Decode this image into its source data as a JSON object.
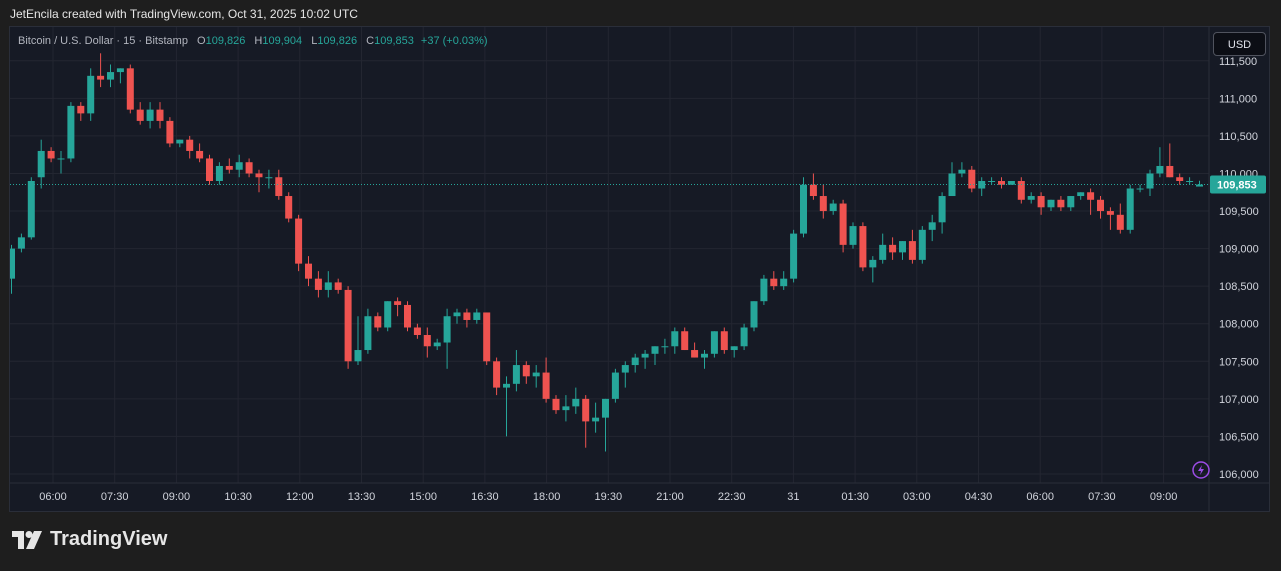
{
  "header": {
    "caption": "JetEncila created with TradingView.com, Oct 31, 2025 10:02 UTC"
  },
  "legend": {
    "symbol": "Bitcoin / U.S. Dollar · 15 · Bitstamp",
    "o_label": "O",
    "o_value": "109,826",
    "h_label": "H",
    "h_value": "109,904",
    "l_label": "L",
    "l_value": "109,826",
    "c_label": "C",
    "c_value": "109,853",
    "change": "+37 (+0.03%)"
  },
  "currency": "USD",
  "last_price_label": "109,853",
  "footer": {
    "brand": "TradingView"
  },
  "colors": {
    "up": "#26a69a",
    "down": "#ef5350",
    "background": "#161a25",
    "grid": "#232631",
    "axis_text": "#d1d4dc"
  },
  "chart_data": {
    "type": "candlestick",
    "title": "Bitcoin / U.S. Dollar · 15 · Bitstamp",
    "x_ticks": [
      "06:00",
      "07:30",
      "09:00",
      "10:30",
      "12:00",
      "13:30",
      "15:00",
      "16:30",
      "18:00",
      "19:30",
      "21:00",
      "22:30",
      "31",
      "01:30",
      "03:00",
      "04:30",
      "06:00",
      "07:30",
      "09:00"
    ],
    "y_ticks": [
      "106,000",
      "106,500",
      "107,000",
      "107,500",
      "108,000",
      "108,500",
      "109,000",
      "109,500",
      "110,000",
      "110,500",
      "111,000",
      "111,500"
    ],
    "y_tick_values": [
      106000,
      106500,
      107000,
      107500,
      108000,
      108500,
      109000,
      109500,
      110000,
      110500,
      111000,
      111500
    ],
    "ylim": [
      105880,
      111950
    ],
    "last_price": 109853,
    "ohlc": [
      [
        108600,
        109050,
        108400,
        109000
      ],
      [
        109000,
        109200,
        108950,
        109150
      ],
      [
        109150,
        109950,
        109120,
        109900
      ],
      [
        109950,
        110450,
        109800,
        110300
      ],
      [
        110300,
        110350,
        110150,
        110200
      ],
      [
        110200,
        110300,
        110000,
        110200
      ],
      [
        110200,
        110950,
        110150,
        110900
      ],
      [
        110900,
        110950,
        110700,
        110800
      ],
      [
        110800,
        111400,
        110700,
        111300
      ],
      [
        111300,
        111600,
        111150,
        111250
      ],
      [
        111250,
        111450,
        111150,
        111350
      ],
      [
        111350,
        111400,
        111200,
        111400
      ],
      [
        111400,
        111450,
        110800,
        110850
      ],
      [
        110850,
        110950,
        110650,
        110700
      ],
      [
        110700,
        110950,
        110600,
        110850
      ],
      [
        110850,
        110950,
        110600,
        110700
      ],
      [
        110700,
        110750,
        110350,
        110400
      ],
      [
        110400,
        110450,
        110350,
        110450
      ],
      [
        110450,
        110500,
        110200,
        110300
      ],
      [
        110300,
        110400,
        110150,
        110200
      ],
      [
        110200,
        110250,
        109850,
        109900
      ],
      [
        109900,
        110150,
        109850,
        110100
      ],
      [
        110100,
        110200,
        110000,
        110050
      ],
      [
        110050,
        110250,
        109950,
        110150
      ],
      [
        110150,
        110200,
        109950,
        110000
      ],
      [
        110000,
        110050,
        109750,
        109950
      ],
      [
        109950,
        110050,
        109800,
        109950
      ],
      [
        109950,
        110050,
        109650,
        109700
      ],
      [
        109700,
        109750,
        109350,
        109400
      ],
      [
        109400,
        109450,
        108700,
        108800
      ],
      [
        108800,
        108900,
        108500,
        108600
      ],
      [
        108600,
        108700,
        108350,
        108450
      ],
      [
        108450,
        108700,
        108350,
        108550
      ],
      [
        108550,
        108600,
        108400,
        108450
      ],
      [
        108450,
        108500,
        107400,
        107500
      ],
      [
        107500,
        108100,
        107450,
        107650
      ],
      [
        107650,
        108200,
        107600,
        108100
      ],
      [
        108100,
        108150,
        107900,
        107950
      ],
      [
        107950,
        108300,
        107900,
        108300
      ],
      [
        108300,
        108350,
        108100,
        108250
      ],
      [
        108250,
        108300,
        107900,
        107950
      ],
      [
        107950,
        108000,
        107800,
        107850
      ],
      [
        107850,
        107950,
        107550,
        107700
      ],
      [
        107700,
        107800,
        107650,
        107750
      ],
      [
        107750,
        108200,
        107400,
        108100
      ],
      [
        108100,
        108200,
        108000,
        108150
      ],
      [
        108150,
        108200,
        107950,
        108050
      ],
      [
        108050,
        108200,
        108000,
        108150
      ],
      [
        108150,
        108150,
        107450,
        107500
      ],
      [
        107500,
        107550,
        107050,
        107150
      ],
      [
        107150,
        107300,
        106500,
        107200
      ],
      [
        107200,
        107650,
        107100,
        107450
      ],
      [
        107450,
        107500,
        107200,
        107300
      ],
      [
        107300,
        107450,
        107150,
        107350
      ],
      [
        107350,
        107550,
        106950,
        107000
      ],
      [
        107000,
        107050,
        106800,
        106850
      ],
      [
        106850,
        107050,
        106700,
        106900
      ],
      [
        106900,
        107150,
        106800,
        107000
      ],
      [
        107000,
        107050,
        106350,
        106700
      ],
      [
        106700,
        106950,
        106550,
        106750
      ],
      [
        106750,
        107000,
        106300,
        107000
      ],
      [
        107000,
        107400,
        106950,
        107350
      ],
      [
        107350,
        107500,
        107150,
        107450
      ],
      [
        107450,
        107600,
        107350,
        107550
      ],
      [
        107550,
        107650,
        107400,
        107600
      ],
      [
        107600,
        107700,
        107450,
        107700
      ],
      [
        107700,
        107800,
        107600,
        107700
      ],
      [
        107700,
        107950,
        107600,
        107900
      ],
      [
        107900,
        107950,
        107650,
        107650
      ],
      [
        107650,
        107750,
        107550,
        107550
      ],
      [
        107550,
        107650,
        107400,
        107600
      ],
      [
        107600,
        107900,
        107550,
        107900
      ],
      [
        107900,
        107950,
        107600,
        107650
      ],
      [
        107650,
        107700,
        107550,
        107700
      ],
      [
        107700,
        108000,
        107650,
        107950
      ],
      [
        107950,
        108300,
        107900,
        108300
      ],
      [
        108300,
        108650,
        108250,
        108600
      ],
      [
        108600,
        108700,
        108450,
        108500
      ],
      [
        108500,
        108700,
        108450,
        108600
      ],
      [
        108600,
        109250,
        108550,
        109200
      ],
      [
        109200,
        109950,
        109150,
        109850
      ],
      [
        109850,
        110000,
        109650,
        109700
      ],
      [
        109700,
        109850,
        109400,
        109500
      ],
      [
        109500,
        109650,
        109450,
        109600
      ],
      [
        109600,
        109650,
        108950,
        109050
      ],
      [
        109050,
        109350,
        109000,
        109300
      ],
      [
        109300,
        109350,
        108700,
        108750
      ],
      [
        108750,
        108900,
        108550,
        108850
      ],
      [
        108850,
        109200,
        108800,
        109050
      ],
      [
        109050,
        109150,
        108850,
        108950
      ],
      [
        108950,
        109100,
        108850,
        109100
      ],
      [
        109100,
        109250,
        108800,
        108850
      ],
      [
        108850,
        109300,
        108800,
        109250
      ],
      [
        109250,
        109450,
        109100,
        109350
      ],
      [
        109350,
        109750,
        109200,
        109700
      ],
      [
        109700,
        110150,
        109700,
        110000
      ],
      [
        110000,
        110150,
        109950,
        110050
      ],
      [
        110050,
        110100,
        109750,
        109800
      ],
      [
        109800,
        109950,
        109700,
        109900
      ],
      [
        109900,
        109950,
        109850,
        109900
      ],
      [
        109900,
        109950,
        109800,
        109850
      ],
      [
        109850,
        109900,
        109850,
        109900
      ],
      [
        109900,
        109950,
        109600,
        109650
      ],
      [
        109650,
        109750,
        109600,
        109700
      ],
      [
        109700,
        109750,
        109450,
        109550
      ],
      [
        109550,
        109650,
        109500,
        109650
      ],
      [
        109650,
        109700,
        109500,
        109550
      ],
      [
        109550,
        109700,
        109500,
        109700
      ],
      [
        109700,
        109750,
        109650,
        109750
      ],
      [
        109750,
        109800,
        109450,
        109650
      ],
      [
        109650,
        109700,
        109400,
        109500
      ],
      [
        109500,
        109550,
        109250,
        109450
      ],
      [
        109450,
        109600,
        109200,
        109250
      ],
      [
        109250,
        109850,
        109200,
        109800
      ],
      [
        109800,
        109850,
        109750,
        109800
      ],
      [
        109800,
        110050,
        109700,
        110000
      ],
      [
        110000,
        110350,
        109950,
        110100
      ],
      [
        110100,
        110400,
        109950,
        109950
      ],
      [
        109950,
        110000,
        109850,
        109900
      ],
      [
        109900,
        109950,
        109850,
        109900
      ],
      [
        109826,
        109904,
        109826,
        109853
      ]
    ]
  }
}
